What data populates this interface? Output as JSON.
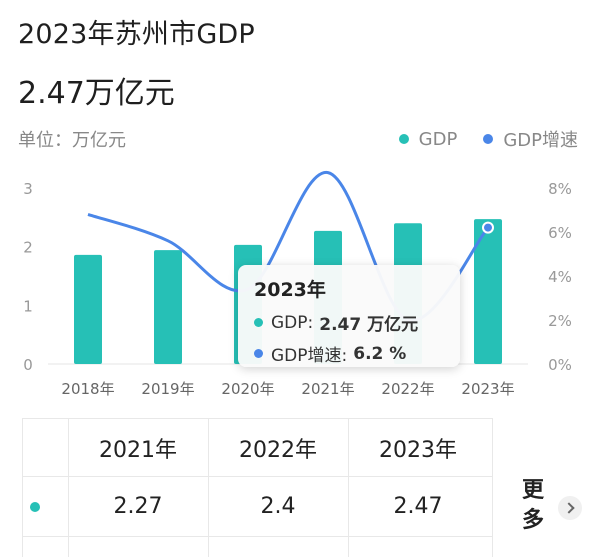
{
  "header": {
    "title": "2023年苏州市GDP",
    "value": "2.47万亿元"
  },
  "unit_label": "单位：万亿元",
  "colors": {
    "gdp": "#26c0b6",
    "growth": "#4a86e8"
  },
  "chart_data": {
    "type": "bar",
    "categories": [
      "2018年",
      "2019年",
      "2020年",
      "2021年",
      "2022年",
      "2023年"
    ],
    "series": [
      {
        "name": "GDP",
        "type": "bar",
        "axis": "left",
        "values": [
          1.86,
          1.94,
          2.03,
          2.27,
          2.4,
          2.47
        ]
      },
      {
        "name": "GDP增速",
        "type": "line",
        "axis": "right",
        "values": [
          6.8,
          5.6,
          3.4,
          8.7,
          2.0,
          6.2
        ]
      }
    ],
    "y_left": {
      "ticks": [
        "0",
        "1",
        "2",
        "3"
      ],
      "ylim": [
        0,
        3
      ]
    },
    "y_right": {
      "ticks": [
        "0%",
        "2%",
        "4%",
        "6%",
        "8%"
      ],
      "ylim": [
        0,
        8
      ]
    },
    "legend": [
      "GDP",
      "GDP增速"
    ],
    "legend_position": "top-right"
  },
  "tooltip": {
    "title": "2023年",
    "gdp_label": "GDP:",
    "gdp_value": "2.47 万亿元",
    "growth_label": "GDP增速:",
    "growth_value": "6.2 %"
  },
  "table": {
    "headers": [
      "2021年",
      "2022年",
      "2023年"
    ],
    "values": [
      "2.27",
      "2.4",
      "2.47"
    ],
    "more_label": "更多"
  }
}
